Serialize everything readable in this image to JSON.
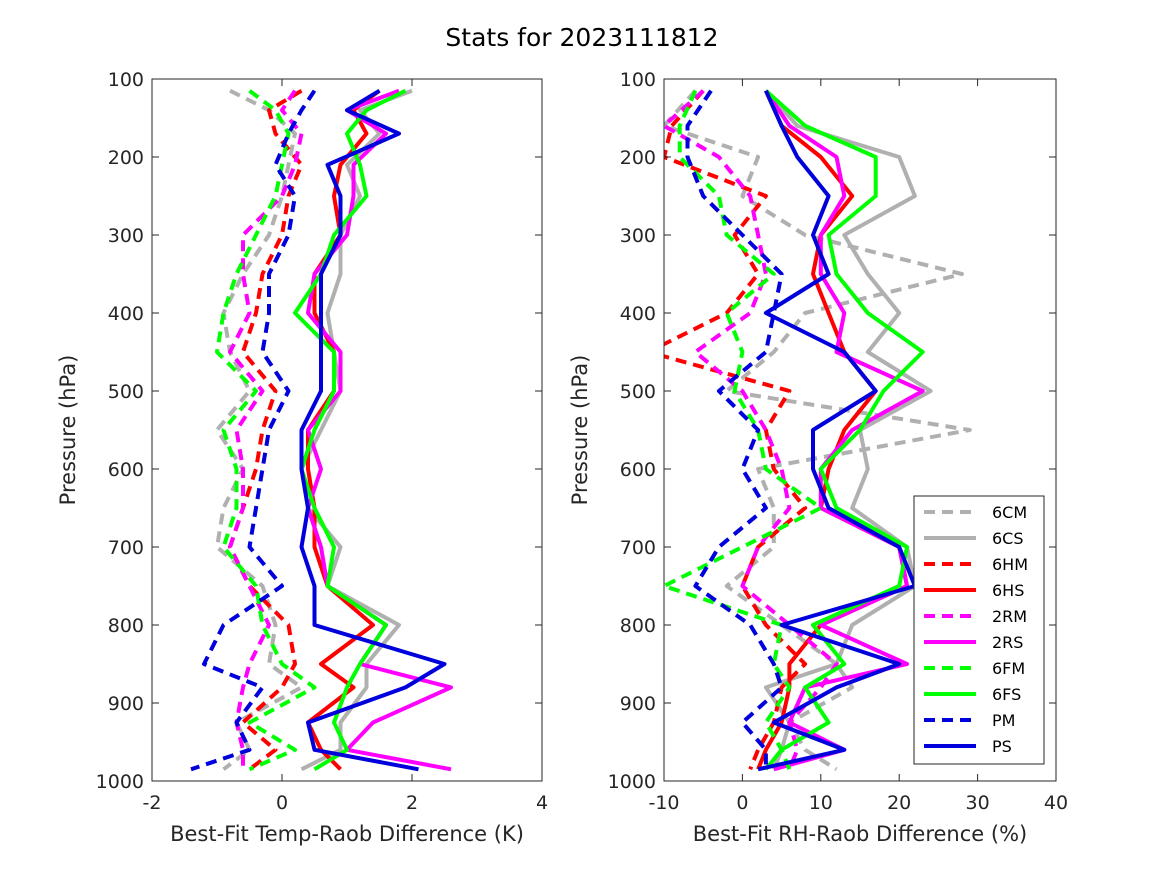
{
  "title": "Stats for 2023111812",
  "series_styles": [
    {
      "key": "6CM",
      "color": "#b0b0b0",
      "dashed": true
    },
    {
      "key": "6CS",
      "color": "#b0b0b0",
      "dashed": false
    },
    {
      "key": "6HM",
      "color": "#ff0000",
      "dashed": true
    },
    {
      "key": "6HS",
      "color": "#ff0000",
      "dashed": false
    },
    {
      "key": "2RM",
      "color": "#ff00ff",
      "dashed": true
    },
    {
      "key": "2RS",
      "color": "#ff00ff",
      "dashed": false
    },
    {
      "key": "6FM",
      "color": "#00ff00",
      "dashed": true
    },
    {
      "key": "6FS",
      "color": "#00ff00",
      "dashed": false
    },
    {
      "key": "PM",
      "color": "#0000dd",
      "dashed": true
    },
    {
      "key": "PS",
      "color": "#0000dd",
      "dashed": false
    }
  ],
  "chart_data": [
    {
      "type": "line",
      "orientation": "profile",
      "xlabel": "Best-Fit Temp-Raob Difference (K)",
      "ylabel": "Pressure (hPa)",
      "xlim": [
        -2,
        4
      ],
      "ylim": [
        100,
        1000
      ],
      "y_reversed": true,
      "xticks": [
        "-2",
        "0",
        "2",
        "4"
      ],
      "yticks": [
        "100",
        "200",
        "300",
        "400",
        "500",
        "600",
        "700",
        "800",
        "900",
        "1000"
      ],
      "grid": false,
      "levels": [
        115,
        140,
        170,
        210,
        250,
        300,
        350,
        400,
        450,
        500,
        550,
        600,
        650,
        700,
        750,
        800,
        850,
        880,
        925,
        960,
        985
      ],
      "series": [
        {
          "name": "6CM",
          "values": [
            -0.8,
            -0.2,
            0.2,
            0.1,
            0.0,
            -0.2,
            -0.6,
            -0.9,
            -0.8,
            -0.5,
            -1.0,
            -0.6,
            -0.9,
            -1.0,
            -0.3,
            -0.1,
            -0.2,
            0.3,
            -0.7,
            -0.5,
            -0.9
          ]
        },
        {
          "name": "6CS",
          "values": [
            2.0,
            1.2,
            1.5,
            1.0,
            1.2,
            0.9,
            0.9,
            0.7,
            0.8,
            0.9,
            0.6,
            0.3,
            0.4,
            0.9,
            0.7,
            1.8,
            1.3,
            1.3,
            0.9,
            0.9,
            0.3
          ]
        },
        {
          "name": "6HM",
          "values": [
            0.3,
            -0.2,
            -0.1,
            0.3,
            0.1,
            0.0,
            -0.3,
            -0.4,
            -0.6,
            -0.1,
            -0.3,
            -0.4,
            -0.6,
            -0.8,
            -0.5,
            0.1,
            0.2,
            0.0,
            -0.6,
            -0.1,
            -0.5
          ]
        },
        {
          "name": "6HS",
          "values": [
            1.5,
            1.1,
            1.3,
            0.9,
            0.8,
            0.9,
            0.5,
            0.5,
            0.8,
            0.8,
            0.4,
            0.4,
            0.5,
            0.5,
            0.7,
            1.4,
            0.6,
            1.1,
            0.4,
            0.6,
            0.9
          ]
        },
        {
          "name": "2RM",
          "values": [
            0.2,
            0.0,
            0.3,
            0.2,
            0.0,
            -0.6,
            -0.6,
            -0.5,
            -0.8,
            -0.3,
            -0.7,
            -0.6,
            -0.6,
            -0.8,
            -0.5,
            -0.2,
            -0.5,
            -0.6,
            -0.7,
            -0.6,
            -0.6
          ]
        },
        {
          "name": "2RS",
          "values": [
            1.8,
            1.0,
            1.6,
            1.1,
            1.1,
            1.0,
            0.5,
            0.4,
            0.9,
            0.9,
            0.4,
            0.6,
            0.4,
            0.6,
            0.7,
            1.6,
            1.2,
            2.6,
            1.4,
            1.0,
            2.6
          ]
        },
        {
          "name": "6FM",
          "values": [
            -0.5,
            -0.1,
            0.1,
            0.0,
            -0.1,
            -0.4,
            -0.7,
            -0.9,
            -1.0,
            -0.4,
            -0.9,
            -0.7,
            -0.7,
            -0.9,
            -0.4,
            -0.3,
            0.0,
            0.5,
            -0.5,
            0.2,
            -0.5
          ]
        },
        {
          "name": "6FS",
          "values": [
            1.9,
            1.3,
            1.0,
            1.2,
            1.3,
            0.8,
            0.6,
            0.2,
            0.8,
            0.8,
            0.5,
            0.3,
            0.5,
            0.8,
            0.7,
            1.6,
            1.2,
            1.0,
            0.8,
            1.0,
            0.5
          ]
        },
        {
          "name": "PM",
          "values": [
            0.5,
            0.3,
            0.1,
            -0.1,
            0.2,
            0.1,
            -0.2,
            -0.2,
            -0.3,
            0.1,
            -0.2,
            -0.3,
            -0.4,
            -0.5,
            0.0,
            -0.9,
            -1.2,
            -0.3,
            -0.7,
            -0.5,
            -1.4
          ]
        },
        {
          "name": "PS",
          "values": [
            1.5,
            1.0,
            1.8,
            0.7,
            0.9,
            0.9,
            0.6,
            0.6,
            0.6,
            0.6,
            0.3,
            0.3,
            0.4,
            0.3,
            0.5,
            0.5,
            2.5,
            1.9,
            0.4,
            0.5,
            2.1
          ]
        }
      ]
    },
    {
      "type": "line",
      "orientation": "profile",
      "xlabel": "Best-Fit RH-Raob Difference (%)",
      "ylabel": "Pressure (hPa)",
      "xlim": [
        -10,
        40
      ],
      "ylim": [
        100,
        1000
      ],
      "y_reversed": true,
      "xticks": [
        "-10",
        "0",
        "10",
        "20",
        "30",
        "40"
      ],
      "yticks": [
        "100",
        "200",
        "300",
        "400",
        "500",
        "600",
        "700",
        "800",
        "900",
        "1000"
      ],
      "grid": false,
      "legend": "lower-right",
      "levels": [
        115,
        160,
        200,
        250,
        300,
        350,
        400,
        450,
        500,
        550,
        600,
        650,
        700,
        750,
        800,
        850,
        880,
        925,
        960,
        985
      ],
      "series": [
        {
          "name": "6CM",
          "values": [
            -6,
            -10,
            2,
            0,
            8,
            28,
            8,
            4,
            -2,
            29,
            2,
            4,
            4,
            -2,
            5,
            12,
            14,
            6,
            8,
            12
          ]
        },
        {
          "name": "6CS",
          "values": [
            3,
            7,
            20,
            22,
            13,
            16,
            20,
            16,
            24,
            15,
            16,
            14,
            21,
            22,
            14,
            12,
            3,
            6,
            5,
            4
          ]
        },
        {
          "name": "6HM",
          "values": [
            -5,
            -9,
            -10,
            3,
            -1,
            2,
            -2,
            -12,
            6,
            3,
            4,
            8,
            2,
            0,
            3,
            8,
            5,
            4,
            2,
            1
          ]
        },
        {
          "name": "6HS",
          "values": [
            3,
            5,
            10,
            14,
            10,
            9,
            11,
            13,
            17,
            13,
            11,
            10,
            20,
            21,
            10,
            6,
            6,
            5,
            3,
            2
          ]
        },
        {
          "name": "2RM",
          "values": [
            -5,
            -10,
            -3,
            1,
            2,
            3,
            1,
            -6,
            0,
            3,
            5,
            6,
            2,
            0,
            6,
            12,
            10,
            6,
            7,
            6
          ]
        },
        {
          "name": "2RS",
          "values": [
            3,
            6,
            12,
            13,
            10,
            10,
            13,
            12,
            23,
            14,
            10,
            10,
            20,
            21,
            10,
            21,
            8,
            6,
            13,
            4
          ]
        },
        {
          "name": "6FM",
          "values": [
            -6,
            -8,
            -8,
            -3,
            -2,
            4,
            -2,
            0,
            -1,
            2,
            3,
            10,
            0,
            -10,
            5,
            4,
            6,
            3,
            5,
            6
          ]
        },
        {
          "name": "6FS",
          "values": [
            3,
            8,
            17,
            17,
            11,
            12,
            16,
            23,
            18,
            15,
            10,
            12,
            21,
            20,
            9,
            13,
            8,
            11,
            5,
            3
          ]
        },
        {
          "name": "PM",
          "values": [
            -4,
            -7,
            -7,
            -5,
            0,
            5,
            4,
            3,
            -3,
            2,
            0,
            3,
            -3,
            -6,
            1,
            4,
            5,
            0,
            3,
            3
          ]
        },
        {
          "name": "PS",
          "values": [
            3,
            5,
            7,
            11,
            9,
            11,
            3,
            13,
            17,
            9,
            9,
            11,
            20,
            22,
            5,
            20,
            12,
            4,
            13,
            2
          ]
        }
      ]
    }
  ]
}
